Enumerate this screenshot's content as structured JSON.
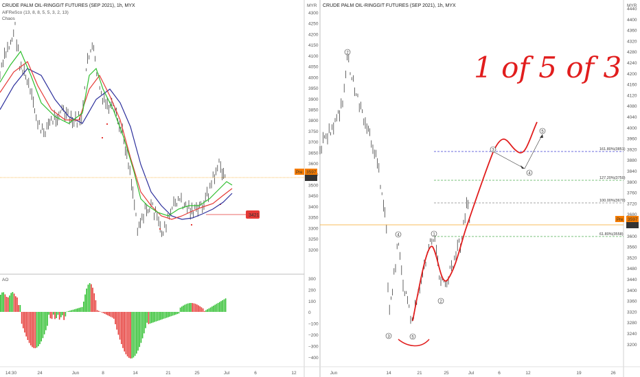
{
  "left_chart": {
    "title": "CRUDE PALM OIL-RINGGIT FUTURES (SEP 2021), 1h, MYX",
    "indicator_1": "AlFReSco (13, 8, 8, 5, 5, 3, 2, 13)",
    "indicator_2": "Chaos",
    "currency": "MYR",
    "price_ticks": [
      "4300",
      "4250",
      "4200",
      "4150",
      "4100",
      "4050",
      "4000",
      "3950",
      "3900",
      "3850",
      "3800",
      "3750",
      "3700",
      "3650",
      "3600",
      "3550",
      "3500",
      "3450",
      "3400",
      "3350",
      "3300",
      "3250",
      "3200"
    ],
    "time_labels": [
      "14:30",
      "24",
      "Jun",
      "8",
      "14",
      "21",
      "25",
      "Jul",
      "6",
      "12"
    ],
    "pre_label": "Pre",
    "pre_price": "3597",
    "price_label": "3597",
    "level_label": "3421",
    "ao": {
      "label": "AO",
      "ticks": [
        "300",
        "200",
        "100",
        "0",
        "−100",
        "−200",
        "−300",
        "−400"
      ]
    }
  },
  "right_chart": {
    "title": "CRUDE PALM OIL-RINGGIT FUTURES (SEP 2021), 1h, MYX",
    "currency": "MYR",
    "price_ticks": [
      "4440",
      "4400",
      "4360",
      "4320",
      "4280",
      "4240",
      "4200",
      "4160",
      "4120",
      "4080",
      "4040",
      "4000",
      "3960",
      "3920",
      "3880",
      "3840",
      "3800",
      "3760",
      "3720",
      "3680",
      "3640",
      "3600",
      "3560",
      "3520",
      "3480",
      "3440",
      "3400",
      "3360",
      "3320",
      "3280",
      "3240",
      "3200"
    ],
    "time_labels": [
      "Jun",
      "14",
      "21",
      "25",
      "Jul",
      "6",
      "12",
      "19",
      "26"
    ],
    "pre_label": "Pre",
    "pre_price": "3597",
    "price_label": "3597",
    "fib_levels": [
      {
        "label": "161.80%(3851)",
        "color": "#3b3bd1"
      },
      {
        "label": "127.20%(3750)",
        "color": "#4caf50"
      },
      {
        "label": "100.00%(3670)",
        "color": "#888888"
      },
      {
        "label": "61.80%(3558)",
        "color": "#4caf50"
      }
    ],
    "wave_labels": [
      "2",
      "4",
      "3",
      "1",
      "5",
      "2",
      "3",
      "4",
      "5",
      "1"
    ],
    "annotation": "1 of 5 of 3"
  },
  "colors": {
    "up": "#26a69a",
    "green": "#2fbf2f",
    "red": "#e53935",
    "blue": "#2b2e9b",
    "orange": "#f57c00",
    "hand": "#e11d1d"
  }
}
